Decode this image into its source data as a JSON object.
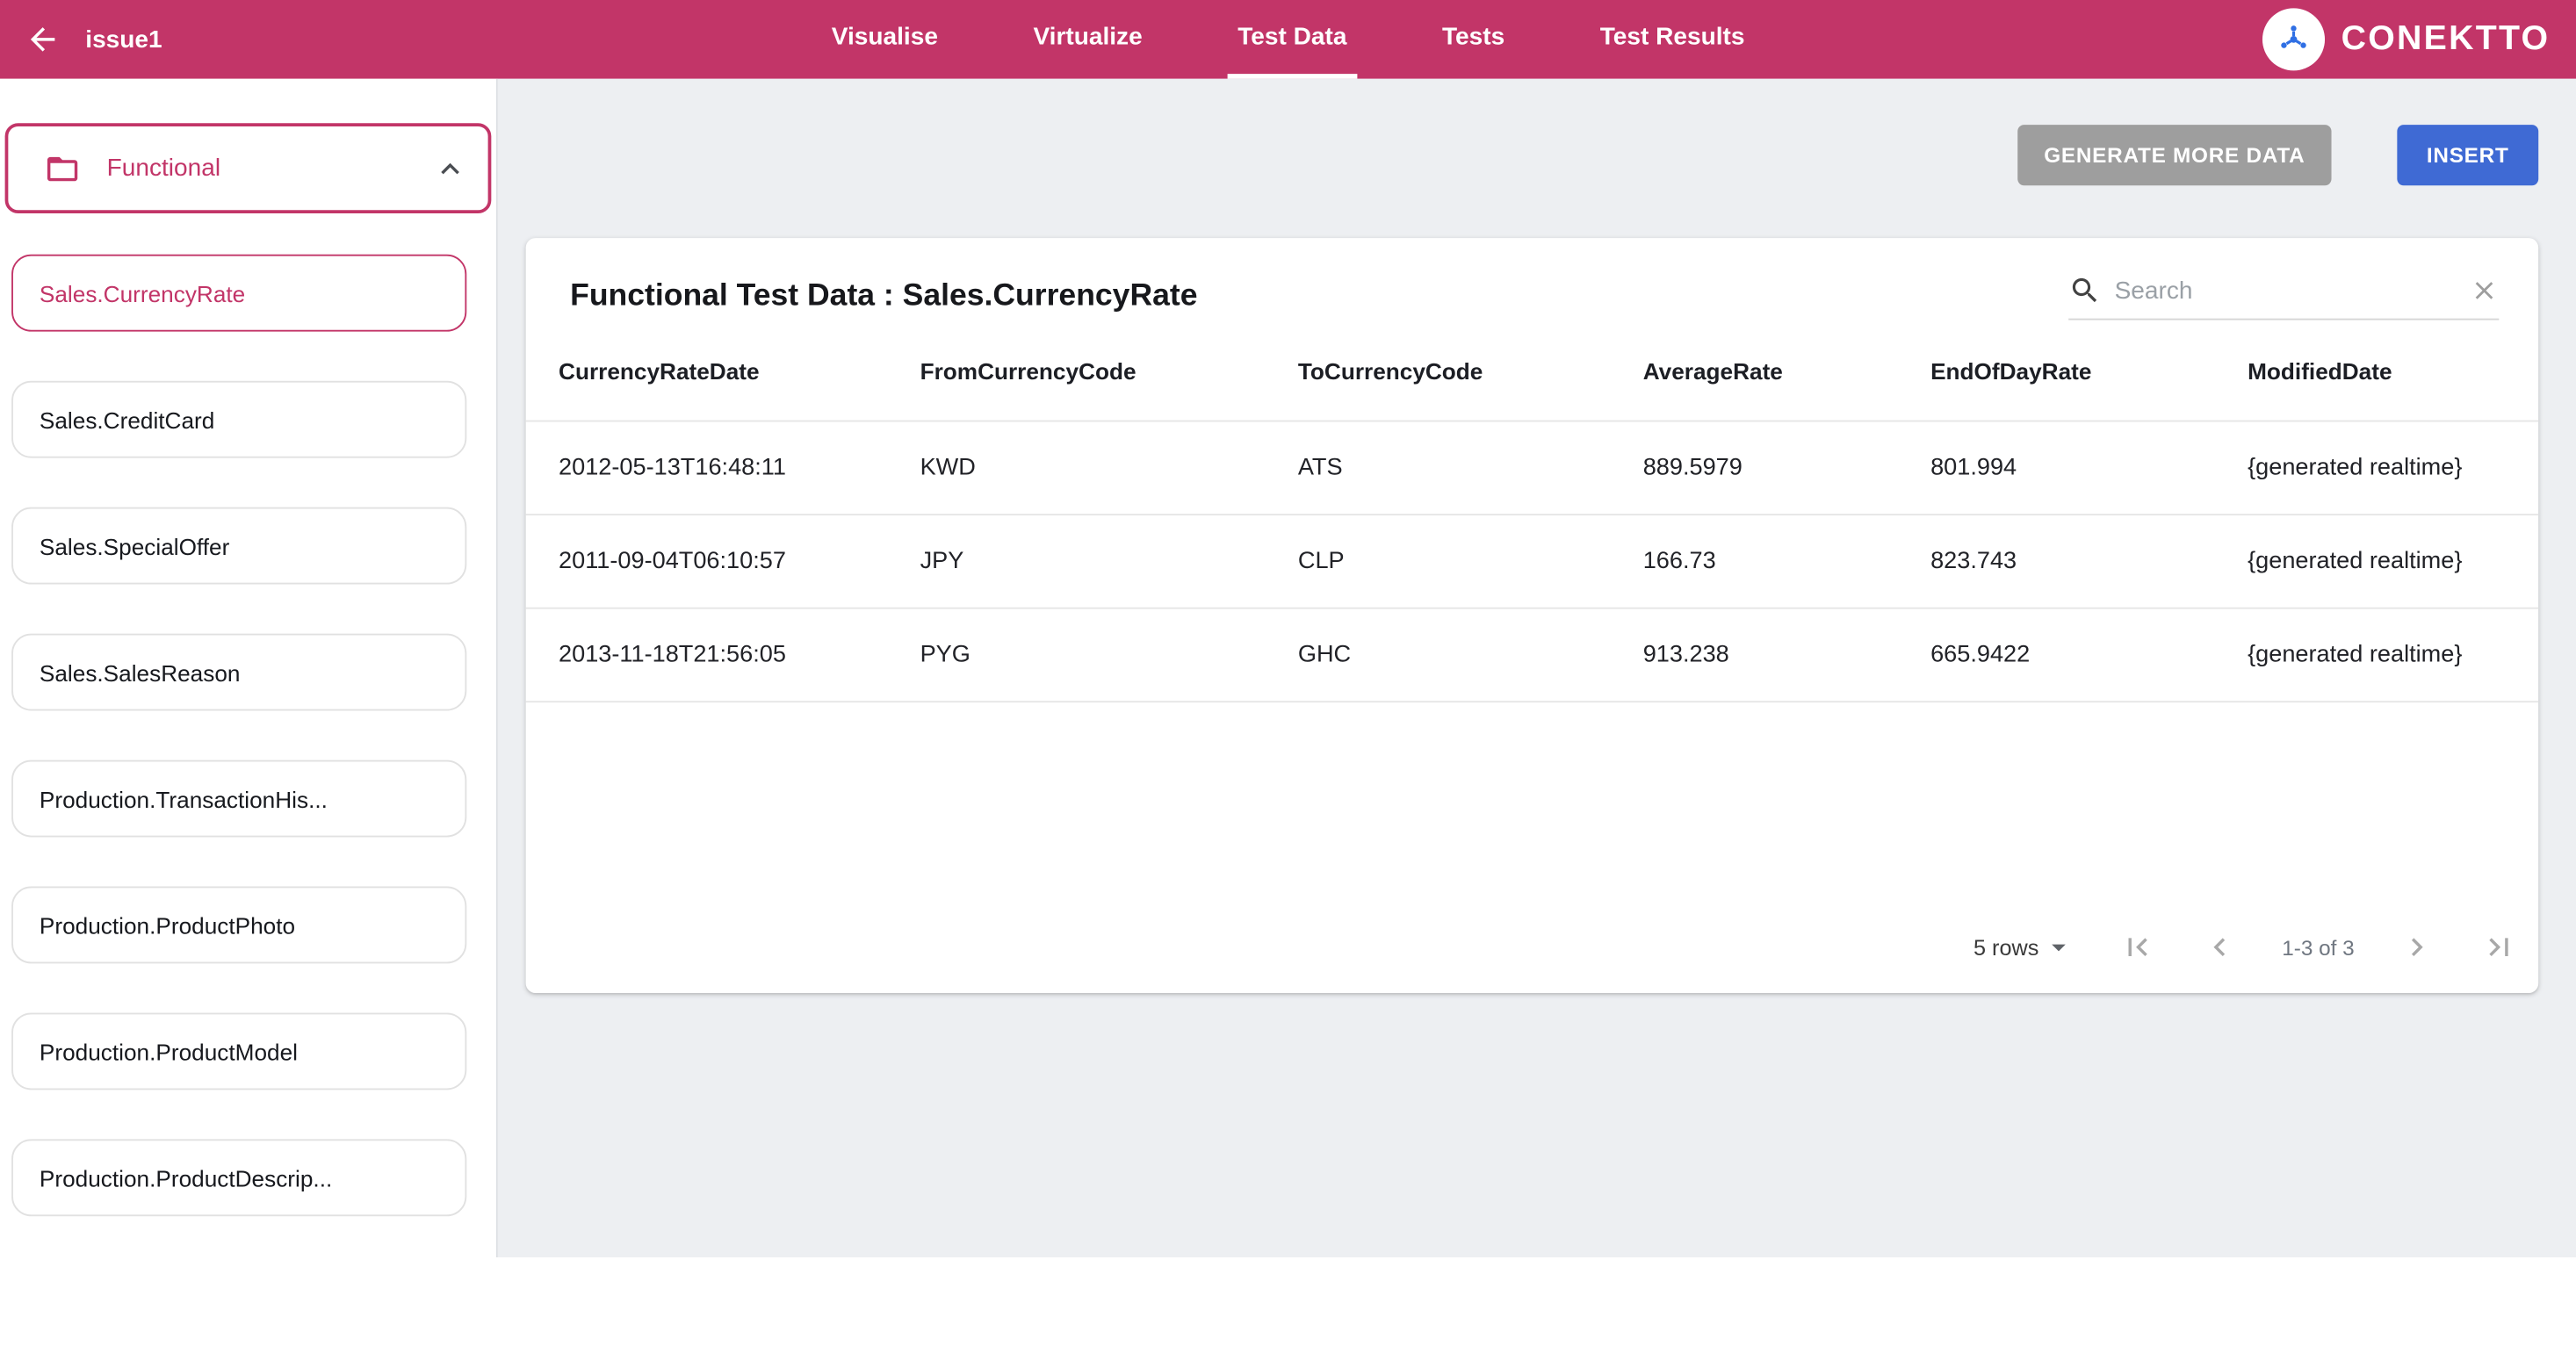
{
  "app": {
    "title": "issue1",
    "brand": "CONEKTTO"
  },
  "topbar": {
    "tabs": [
      {
        "label": "Visualise",
        "active": false
      },
      {
        "label": "Virtualize",
        "active": false
      },
      {
        "label": "Test Data",
        "active": true
      },
      {
        "label": "Tests",
        "active": false
      },
      {
        "label": "Test Results",
        "active": false
      }
    ]
  },
  "sidebar": {
    "folder": {
      "label": "Functional"
    },
    "items": [
      {
        "label": "Sales.CurrencyRate",
        "selected": true
      },
      {
        "label": "Sales.CreditCard",
        "selected": false
      },
      {
        "label": "Sales.SpecialOffer",
        "selected": false
      },
      {
        "label": "Sales.SalesReason",
        "selected": false
      },
      {
        "label": "Production.TransactionHis...",
        "selected": false
      },
      {
        "label": "Production.ProductPhoto",
        "selected": false
      },
      {
        "label": "Production.ProductModel",
        "selected": false
      },
      {
        "label": "Production.ProductDescrip...",
        "selected": false
      }
    ]
  },
  "actions": {
    "generate_label": "GENERATE MORE DATA",
    "insert_label": "INSERT"
  },
  "card": {
    "title": "Functional Test Data : Sales.CurrencyRate",
    "search_placeholder": "Search",
    "table": {
      "columns": [
        "CurrencyRateDate",
        "FromCurrencyCode",
        "ToCurrencyCode",
        "AverageRate",
        "EndOfDayRate",
        "ModifiedDate"
      ],
      "rows": [
        [
          "2012-05-13T16:48:11",
          "KWD",
          "ATS",
          "889.5979",
          "801.994",
          "{generated realtime}"
        ],
        [
          "2011-09-04T06:10:57",
          "JPY",
          "CLP",
          "166.73",
          "823.743",
          "{generated realtime}"
        ],
        [
          "2013-11-18T21:56:05",
          "PYG",
          "GHC",
          "913.238",
          "665.9422",
          "{generated realtime}"
        ]
      ]
    },
    "pagination": {
      "rows_per_page": "5 rows",
      "range": "1-3 of 3"
    }
  },
  "colors": {
    "primary": "#c23568",
    "insert_blue": "#3f6ad4",
    "generate_gray": "#9e9e9e"
  }
}
